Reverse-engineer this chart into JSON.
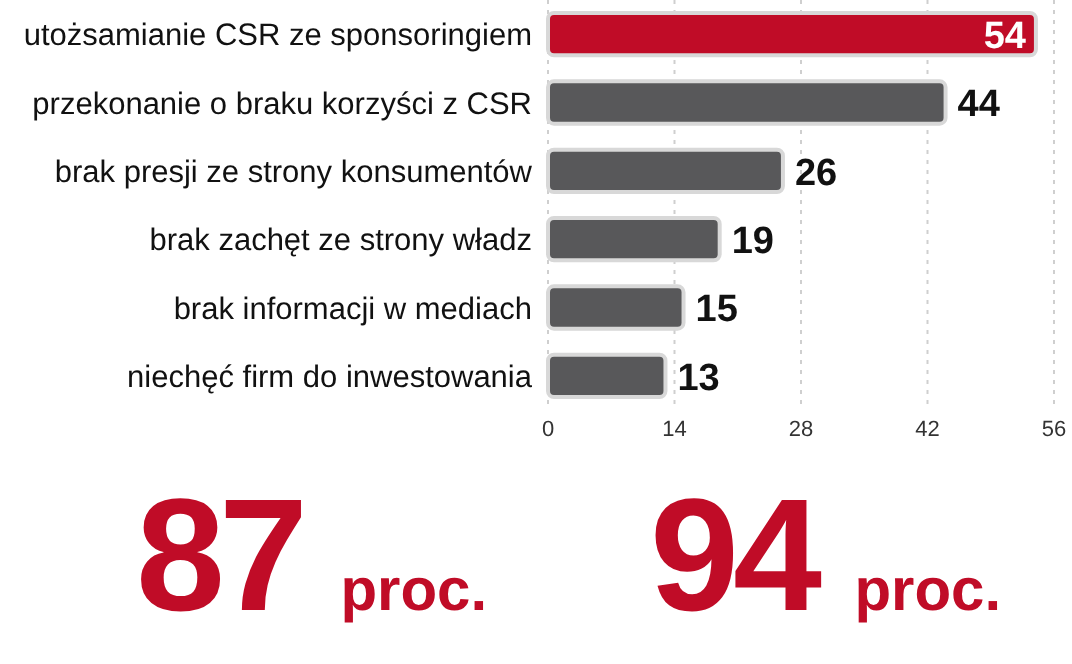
{
  "chart_data": {
    "type": "bar",
    "orientation": "horizontal",
    "categories": [
      "utożsamianie CSR ze sponsoringiem",
      "przekonanie o braku korzyści z CSR",
      "brak presji ze strony konsumentów",
      "brak zachęt ze strony władz",
      "brak informacji w mediach",
      "niechęć firm do inwestowania"
    ],
    "values": [
      54,
      44,
      26,
      19,
      15,
      13
    ],
    "colors": [
      "#c00c27",
      "#58585a",
      "#58585a",
      "#58585a",
      "#58585a",
      "#58585a"
    ],
    "xlim": [
      0,
      56
    ],
    "xticks": [
      0,
      14,
      28,
      42,
      56
    ],
    "grid": "x",
    "data_labels": true,
    "annotations": [
      "87 proc.",
      "94 proc."
    ]
  }
}
